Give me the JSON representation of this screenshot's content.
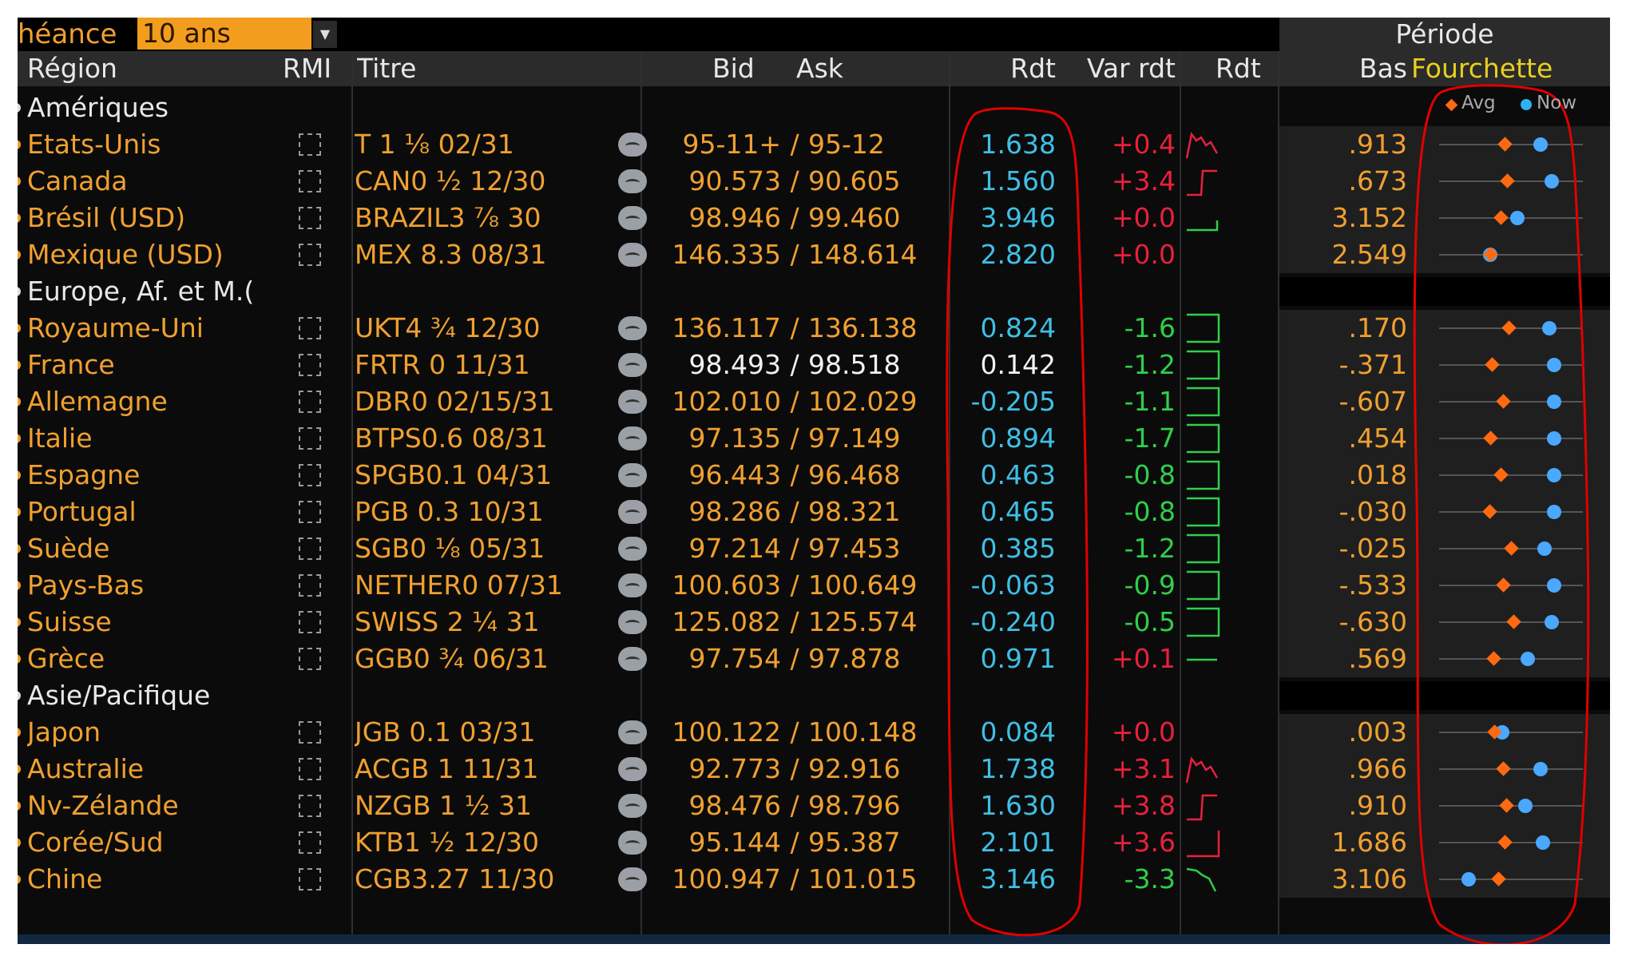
{
  "topbar": {
    "echeance_label": "héance",
    "echeance_value": "10 ans",
    "periode_label": "Période"
  },
  "columns": {
    "region": "Région",
    "rmi": "RMI",
    "titre": "Titre",
    "bid": "Bid",
    "ask": "Ask",
    "rdt": "Rdt",
    "var_rdt": "Var rdt",
    "rdt_chart": "Rdt",
    "bas": "Bas",
    "fourchette": "Fourchette"
  },
  "legend": {
    "avg": "Avg",
    "now": "Now"
  },
  "colors": {
    "amber": "#f0a030",
    "cyan": "#3fbfe6",
    "red": "#e8203c",
    "green": "#2fcf4a",
    "avg_marker": "#ff6a10",
    "now_marker": "#4aa8ff",
    "annotation": "#e00000"
  },
  "rows": [
    {
      "type": "group",
      "label": "Amériques"
    },
    {
      "type": "bond",
      "region": "Etats-Unis",
      "titre": "T 1 ⅛ 02/31",
      "bid": "95-11+",
      "ask": "95-12",
      "rdt": "1.638",
      "rdt_color": "cyan",
      "var": "+0.4",
      "var_color": "red",
      "spark": "up-red",
      "bas": ".913",
      "avg": 0.45,
      "now": 0.73
    },
    {
      "type": "bond",
      "region": "Canada",
      "titre": "CAN0 ½ 12/30",
      "bid": "90.573",
      "ask": "90.605",
      "rdt": "1.560",
      "rdt_color": "cyan",
      "var": "+3.4",
      "var_color": "red",
      "spark": "step-red",
      "bas": ".673",
      "avg": 0.47,
      "now": 0.82
    },
    {
      "type": "bond",
      "region": "Brésil (USD)",
      "titre": "BRAZIL3 ⅞ 30",
      "bid": "98.946",
      "ask": "99.460",
      "rdt": "3.946",
      "rdt_color": "cyan",
      "var": "+0.0",
      "var_color": "red",
      "spark": "flat-green",
      "bas": "3.152",
      "avg": 0.42,
      "now": 0.55
    },
    {
      "type": "bond",
      "region": "Mexique (USD)",
      "titre": "MEX 8.3 08/31",
      "bid": "146.335",
      "ask": "148.614",
      "rdt": "2.820",
      "rdt_color": "cyan",
      "var": "+0.0",
      "var_color": "red",
      "spark": "none",
      "bas": "2.549",
      "avg": 0.34,
      "now": 0.34
    },
    {
      "type": "group",
      "label": "Europe, Af. et M.("
    },
    {
      "type": "bond",
      "region": "Royaume-Uni",
      "titre": "UKT4 ¾ 12/30",
      "bid": "136.117",
      "ask": "136.138",
      "rdt": "0.824",
      "rdt_color": "cyan",
      "var": "-1.6",
      "var_color": "green",
      "spark": "box-green",
      "bas": ".170",
      "avg": 0.48,
      "now": 0.8
    },
    {
      "type": "bond",
      "region": "France",
      "titre": "FRTR 0 11/31",
      "bid": "98.493",
      "ask": "98.518",
      "rdt": "0.142",
      "rdt_color": "white",
      "var": "-1.2",
      "var_color": "green",
      "spark": "box-green",
      "bas": "-.371",
      "avg": 0.35,
      "now": 0.84
    },
    {
      "type": "bond",
      "region": "Allemagne",
      "titre": "DBR0 02/15/31",
      "bid": "102.010",
      "ask": "102.029",
      "rdt": "-0.205",
      "rdt_color": "cyan",
      "var": "-1.1",
      "var_color": "green",
      "spark": "box-green",
      "bas": "-.607",
      "avg": 0.44,
      "now": 0.84
    },
    {
      "type": "bond",
      "region": "Italie",
      "titre": "BTPS0.6 08/31",
      "bid": "97.135",
      "ask": "97.149",
      "rdt": "0.894",
      "rdt_color": "cyan",
      "var": "-1.7",
      "var_color": "green",
      "spark": "box-green",
      "bas": ".454",
      "avg": 0.34,
      "now": 0.84
    },
    {
      "type": "bond",
      "region": "Espagne",
      "titre": "SPGB0.1 04/31",
      "bid": "96.443",
      "ask": "96.468",
      "rdt": "0.463",
      "rdt_color": "cyan",
      "var": "-0.8",
      "var_color": "green",
      "spark": "box-green",
      "bas": ".018",
      "avg": 0.42,
      "now": 0.84
    },
    {
      "type": "bond",
      "region": "Portugal",
      "titre": "PGB 0.3 10/31",
      "bid": "98.286",
      "ask": "98.321",
      "rdt": "0.465",
      "rdt_color": "cyan",
      "var": "-0.8",
      "var_color": "green",
      "spark": "box-green",
      "bas": "-.030",
      "avg": 0.33,
      "now": 0.84
    },
    {
      "type": "bond",
      "region": "Suède",
      "titre": "SGB0 ⅛ 05/31",
      "bid": "97.214",
      "ask": "97.453",
      "rdt": "0.385",
      "rdt_color": "cyan",
      "var": "-1.2",
      "var_color": "green",
      "spark": "box-green",
      "bas": "-.025",
      "avg": 0.5,
      "now": 0.76
    },
    {
      "type": "bond",
      "region": "Pays-Bas",
      "titre": "NETHER0 07/31",
      "bid": "100.603",
      "ask": "100.649",
      "rdt": "-0.063",
      "rdt_color": "cyan",
      "var": "-0.9",
      "var_color": "green",
      "spark": "box-green",
      "bas": "-.533",
      "avg": 0.44,
      "now": 0.84
    },
    {
      "type": "bond",
      "region": "Suisse",
      "titre": "SWISS 2 ¼ 31",
      "bid": "125.082",
      "ask": "125.574",
      "rdt": "-0.240",
      "rdt_color": "cyan",
      "var": "-0.5",
      "var_color": "green",
      "spark": "box-green-red",
      "bas": "-.630",
      "avg": 0.52,
      "now": 0.82
    },
    {
      "type": "bond",
      "region": "Grèce",
      "titre": "GGB0 ¾ 06/31",
      "bid": "97.754",
      "ask": "97.878",
      "rdt": "0.971",
      "rdt_color": "cyan",
      "var": "+0.1",
      "var_color": "red",
      "spark": "flat-green-red",
      "bas": ".569",
      "avg": 0.36,
      "now": 0.63
    },
    {
      "type": "group",
      "label": "Asie/Pacifique"
    },
    {
      "type": "bond",
      "region": "Japon",
      "titre": "JGB 0.1 03/31",
      "bid": "100.122",
      "ask": "100.148",
      "rdt": "0.084",
      "rdt_color": "cyan",
      "var": "+0.0",
      "var_color": "red",
      "spark": "none",
      "bas": ".003",
      "avg": 0.37,
      "now": 0.43
    },
    {
      "type": "bond",
      "region": "Australie",
      "titre": "ACGB 1 11/31",
      "bid": "92.773",
      "ask": "92.916",
      "rdt": "1.738",
      "rdt_color": "cyan",
      "var": "+3.1",
      "var_color": "red",
      "spark": "up-red",
      "bas": ".966",
      "avg": 0.44,
      "now": 0.73
    },
    {
      "type": "bond",
      "region": "Nv-Zélande",
      "titre": "NZGB 1 ½ 31",
      "bid": "98.476",
      "ask": "98.796",
      "rdt": "1.630",
      "rdt_color": "cyan",
      "var": "+3.8",
      "var_color": "red",
      "spark": "step-red",
      "bas": ".910",
      "avg": 0.46,
      "now": 0.61
    },
    {
      "type": "bond",
      "region": "Corée/Sud",
      "titre": "KTB1 ½ 12/30",
      "bid": "95.144",
      "ask": "95.387",
      "rdt": "2.101",
      "rdt_color": "cyan",
      "var": "+3.6",
      "var_color": "red",
      "spark": "box-red",
      "bas": "1.686",
      "avg": 0.45,
      "now": 0.75
    },
    {
      "type": "bond",
      "region": "Chine",
      "titre": "CGB3.27 11/30",
      "bid": "100.947",
      "ask": "101.015",
      "rdt": "3.146",
      "rdt_color": "cyan",
      "var": "-3.3",
      "var_color": "green",
      "spark": "down-green",
      "bas": "3.106",
      "avg": 0.4,
      "now": 0.17
    }
  ]
}
